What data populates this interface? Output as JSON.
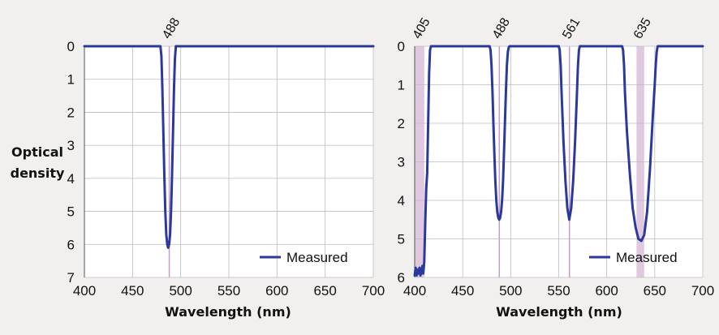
{
  "figure": {
    "ylabel_line1": "Optical",
    "ylabel_line2": "density"
  },
  "chart_data": [
    {
      "type": "line",
      "title": "",
      "xlabel": "Wavelength (nm)",
      "ylabel": "Optical density",
      "xlim": [
        400,
        700
      ],
      "ylim": [
        0,
        7
      ],
      "y_inverted": true,
      "grid": true,
      "x_ticks": [
        400,
        450,
        500,
        550,
        600,
        650,
        700
      ],
      "y_ticks": [
        0,
        1,
        2,
        3,
        4,
        5,
        6,
        7
      ],
      "laser_lines": [
        {
          "label": "488",
          "wavelength": 488,
          "band": [
            487.5,
            488.5
          ]
        }
      ],
      "legend": {
        "entries": [
          "Measured"
        ],
        "position": "bottom-right"
      },
      "series": [
        {
          "name": "Measured",
          "color": "#2b3a9a",
          "x": [
            400,
            479,
            480,
            481,
            482,
            483,
            484,
            485,
            486,
            487,
            488,
            489,
            490,
            491,
            492,
            493,
            494,
            495,
            496,
            700
          ],
          "y": [
            0,
            0,
            0.3,
            1.3,
            2.6,
            3.9,
            5.0,
            5.7,
            6.0,
            6.1,
            6.0,
            5.7,
            5.0,
            3.9,
            2.6,
            1.3,
            0.4,
            0,
            0,
            0
          ]
        }
      ]
    },
    {
      "type": "line",
      "title": "",
      "xlabel": "Wavelength (nm)",
      "ylabel": "",
      "xlim": [
        400,
        700
      ],
      "ylim": [
        0,
        6
      ],
      "y_inverted": true,
      "grid": true,
      "x_ticks": [
        400,
        450,
        500,
        550,
        600,
        650,
        700
      ],
      "y_ticks": [
        0,
        1,
        2,
        3,
        4,
        5,
        6
      ],
      "laser_lines": [
        {
          "label": "405",
          "wavelength": 405,
          "band": [
            400,
            410
          ]
        },
        {
          "label": "488",
          "wavelength": 488,
          "band": [
            487.5,
            488.5
          ]
        },
        {
          "label": "561",
          "wavelength": 561,
          "band": [
            560.5,
            561.5
          ]
        },
        {
          "label": "635",
          "wavelength": 635,
          "band": [
            631,
            639
          ]
        }
      ],
      "legend": {
        "entries": [
          "Measured"
        ],
        "position": "bottom-right"
      },
      "series": [
        {
          "name": "Measured",
          "color": "#2b3a9a",
          "x": [
            400,
            401,
            402,
            403,
            404,
            405,
            406,
            407,
            408,
            409,
            410,
            411,
            412,
            413,
            414,
            415,
            416,
            417,
            418,
            478,
            479,
            480,
            481,
            482,
            483,
            484,
            485,
            486,
            487,
            488,
            489,
            490,
            491,
            492,
            493,
            494,
            495,
            496,
            497,
            498,
            499,
            550,
            551,
            552,
            553,
            555,
            557,
            559,
            561,
            563,
            565,
            567,
            569,
            570,
            571,
            572,
            616,
            617,
            618,
            619,
            621,
            624,
            627,
            630,
            633,
            636,
            639,
            642,
            645,
            648,
            650,
            651,
            652,
            653,
            700
          ],
          "y": [
            5.95,
            5.75,
            5.95,
            5.8,
            5.9,
            5.75,
            5.95,
            5.85,
            5.7,
            5.9,
            5.6,
            4.6,
            3.7,
            3.3,
            2.0,
            0.7,
            0.1,
            0,
            0,
            0,
            0.1,
            0.5,
            1.2,
            2.0,
            2.8,
            3.5,
            4.0,
            4.3,
            4.45,
            4.5,
            4.45,
            4.3,
            4.0,
            3.5,
            2.8,
            2.0,
            1.2,
            0.5,
            0.15,
            0.02,
            0,
            0,
            0.1,
            0.5,
            1.2,
            2.5,
            3.5,
            4.2,
            4.5,
            4.2,
            3.5,
            2.5,
            1.2,
            0.5,
            0.1,
            0,
            0,
            0.1,
            0.5,
            1.2,
            2.2,
            3.3,
            4.2,
            4.7,
            5.0,
            5.05,
            4.9,
            4.3,
            3.2,
            1.8,
            1.0,
            0.5,
            0.15,
            0,
            0
          ]
        }
      ]
    }
  ]
}
